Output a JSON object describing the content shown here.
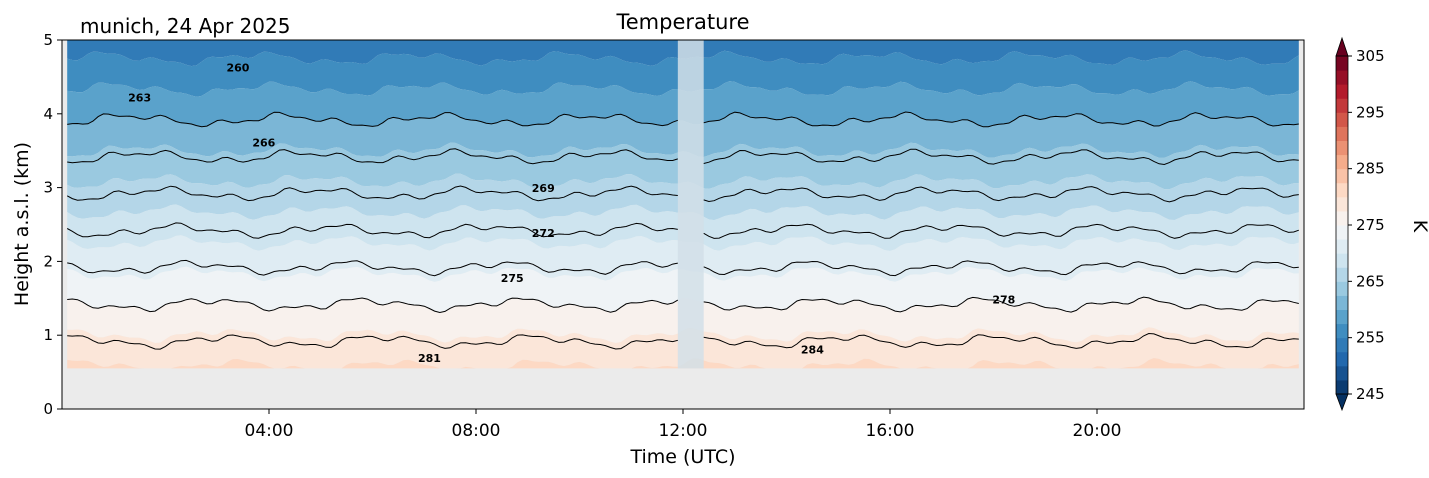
{
  "chart_data": {
    "type": "heatmap",
    "title": "Temperature",
    "location_label": "munich, 24 Apr 2025",
    "xlabel": "Time (UTC)",
    "ylabel": "Height a.s.l. (km)",
    "x_range_hours": [
      0,
      24
    ],
    "y_range_km": [
      0,
      5
    ],
    "x_ticks": [
      {
        "hour": 4,
        "label": "04:00"
      },
      {
        "hour": 8,
        "label": "08:00"
      },
      {
        "hour": 12,
        "label": "12:00"
      },
      {
        "hour": 16,
        "label": "16:00"
      },
      {
        "hour": 20,
        "label": "20:00"
      }
    ],
    "y_ticks": [
      {
        "value": 0,
        "label": "0"
      },
      {
        "value": 1,
        "label": "1"
      },
      {
        "value": 2,
        "label": "2"
      },
      {
        "value": 3,
        "label": "3"
      },
      {
        "value": 4,
        "label": "4"
      },
      {
        "value": 5,
        "label": "5"
      }
    ],
    "data_bottom_km": 0.55,
    "data_gap_hours": [
      11.9,
      12.4
    ],
    "surface_temperature_K": 283.5,
    "lapse_rate_K_per_km": -6.0,
    "contours": [
      {
        "level": 260,
        "label_hour": 3.4,
        "label_km": 4.57
      },
      {
        "level": 263,
        "label_hour": 1.5,
        "label_km": 4.17
      },
      {
        "level": 266,
        "label_hour": 3.9,
        "label_km": 3.56
      },
      {
        "level": 269,
        "label_hour": 9.3,
        "label_km": 2.94
      },
      {
        "level": 272,
        "label_hour": 9.3,
        "label_km": 2.33
      },
      {
        "level": 275,
        "label_hour": 8.7,
        "label_km": 1.72
      },
      {
        "level": 278,
        "label_hour": 18.2,
        "label_km": 1.43
      },
      {
        "level": 281,
        "label_hour": 7.1,
        "label_km": 0.64
      },
      {
        "level": 284,
        "label_hour": 14.5,
        "label_km": 0.75
      }
    ],
    "colorbar": {
      "label": "K",
      "min": 245,
      "max": 305,
      "step": 2.5,
      "extend": "both",
      "ticks": [
        {
          "value": 305,
          "label": "305"
        },
        {
          "value": 295,
          "label": "295"
        },
        {
          "value": 285,
          "label": "285"
        },
        {
          "value": 275,
          "label": "275"
        },
        {
          "value": 265,
          "label": "265"
        },
        {
          "value": 255,
          "label": "255"
        },
        {
          "value": 245,
          "label": "245"
        }
      ]
    },
    "colormap": [
      "#053061",
      "#2166ac",
      "#4393c3",
      "#92c5de",
      "#d1e5f0",
      "#f7f7f7",
      "#fddbc7",
      "#f4a582",
      "#d6604d",
      "#b2182b",
      "#67001f"
    ],
    "missing_color": "#ebebeb",
    "grid": false
  }
}
